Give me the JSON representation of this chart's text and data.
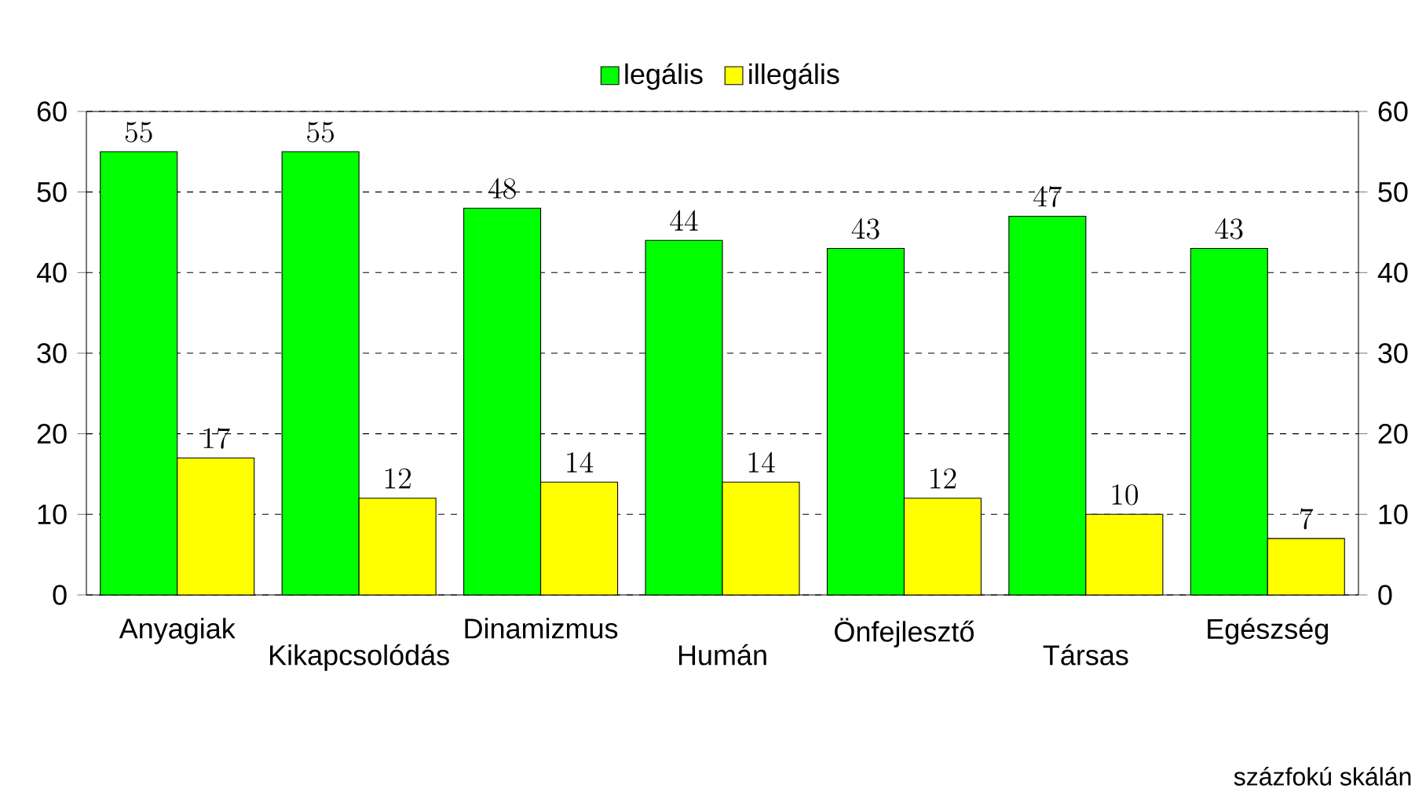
{
  "chart_data": {
    "type": "bar",
    "categories": [
      "Anyagiak",
      "Kikapcsolódás",
      "Dinamizmus",
      "Humán",
      "Önfejlesztő",
      "Társas",
      "Egészség"
    ],
    "series": [
      {
        "name": "legális",
        "color": "#00ff00",
        "values": [
          55,
          55,
          48,
          44,
          43,
          47,
          43
        ]
      },
      {
        "name": "illegális",
        "color": "#ffff00",
        "values": [
          17,
          12,
          14,
          14,
          12,
          10,
          7
        ]
      }
    ],
    "ylim": [
      0,
      60
    ],
    "yticks": [
      0,
      10,
      20,
      30,
      40,
      50,
      60
    ],
    "y2lim": [
      0,
      60
    ],
    "y2ticks": [
      0,
      10,
      20,
      30,
      40,
      50,
      60
    ],
    "grid": "y",
    "line_style": "dashed",
    "legend": "top",
    "data_labels": true,
    "annotations": [
      "százfokú skálán"
    ]
  }
}
